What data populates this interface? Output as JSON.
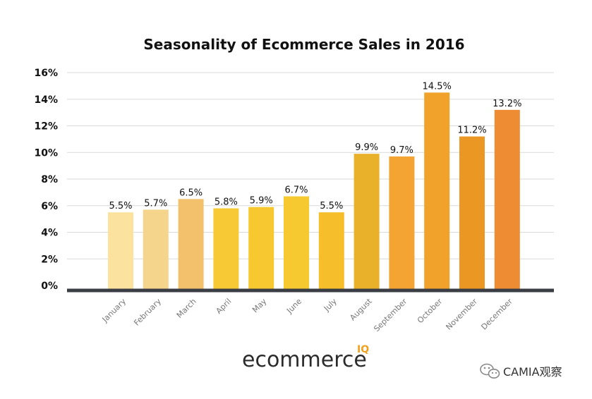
{
  "chart_data": {
    "type": "bar",
    "title": "Seasonality of Ecommerce Sales in 2016",
    "xlabel": "",
    "ylabel": "",
    "ylim": [
      0,
      16
    ],
    "y_ticks": [
      "0%",
      "2%",
      "4%",
      "6%",
      "8%",
      "10%",
      "12%",
      "14%",
      "16%"
    ],
    "y_tick_values": [
      0,
      2,
      4,
      6,
      8,
      10,
      12,
      14,
      16
    ],
    "categories": [
      "January",
      "February",
      "March",
      "April",
      "May",
      "June",
      "July",
      "August",
      "September",
      "October",
      "November",
      "December"
    ],
    "values": [
      5.5,
      5.7,
      6.5,
      5.8,
      5.9,
      6.7,
      5.5,
      9.9,
      9.7,
      14.5,
      11.2,
      13.2
    ],
    "data_labels": [
      "5.5%",
      "5.7%",
      "6.5%",
      "5.8%",
      "5.9%",
      "6.7%",
      "5.5%",
      "9.9%",
      "9.7%",
      "14.5%",
      "11.2%",
      "13.2%"
    ],
    "bar_colors": [
      "#fbe29f",
      "#f5d58c",
      "#f3c16b",
      "#f7ca35",
      "#f8c831",
      "#f7c930",
      "#f5be2a",
      "#e9b02a",
      "#f4a433",
      "#f1a22a",
      "#eb9723",
      "#ee8c34"
    ],
    "grid": true,
    "legend": "none"
  },
  "brand": {
    "logo_text": "ecommerce",
    "logo_superscript": "IQ"
  },
  "watermark": {
    "text": "CAMIA观察"
  }
}
